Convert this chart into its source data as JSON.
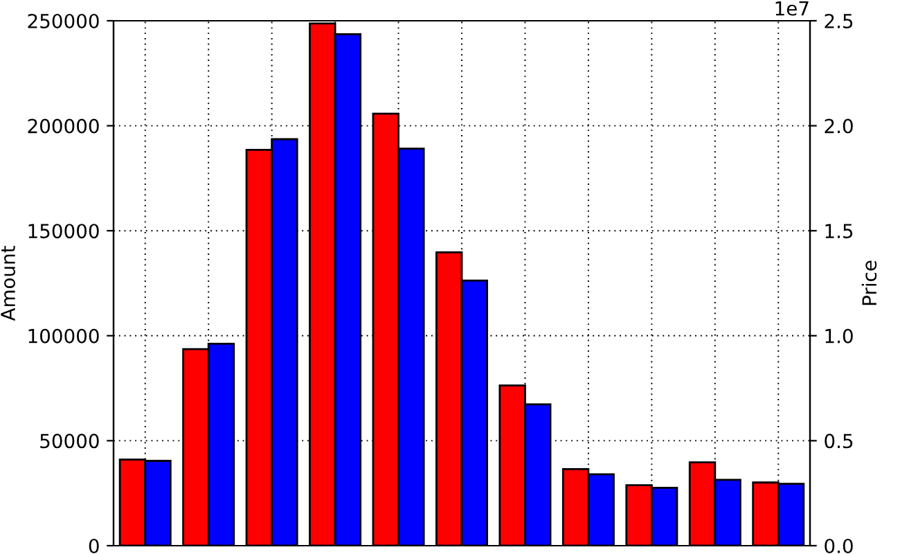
{
  "chart_data": {
    "type": "bar",
    "ylabel": "Amount",
    "y2label": "Price",
    "categories": [
      null,
      null,
      null,
      null,
      null,
      null,
      null,
      null,
      null,
      null,
      null
    ],
    "series": [
      {
        "color": "#ff0000",
        "values": [
          41000,
          93600,
          188500,
          248700,
          205800,
          139700,
          76300,
          36500,
          28800,
          39700,
          30100
        ]
      },
      {
        "color": "#0000ff",
        "axis": "y2",
        "values": [
          0.404,
          0.962,
          1.936,
          2.436,
          1.891,
          1.263,
          0.673,
          0.34,
          0.276,
          0.314,
          0.295
        ]
      }
    ],
    "ylim": [
      0,
      250000
    ],
    "yticks": [
      0,
      50000,
      100000,
      150000,
      200000,
      250000
    ],
    "y2lim": [
      0,
      2.5
    ],
    "y2ticks": [
      {
        "value": 0,
        "label": "0.0"
      },
      {
        "value": 0.5,
        "label": "0.5"
      },
      {
        "value": 1,
        "label": "1.0"
      },
      {
        "value": 1.5,
        "label": "1.5"
      },
      {
        "value": 2,
        "label": "2.0"
      },
      {
        "value": 2.5,
        "label": "2.5"
      }
    ],
    "annotations": [
      "1e7"
    ],
    "grid": true
  }
}
